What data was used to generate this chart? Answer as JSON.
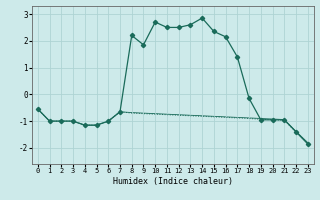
{
  "xlabel": "Humidex (Indice chaleur)",
  "background_color": "#cdeaea",
  "grid_color": "#aed4d4",
  "line_color": "#1a6b5a",
  "xlim": [
    -0.5,
    23.5
  ],
  "ylim": [
    -2.6,
    3.3
  ],
  "xticks": [
    0,
    1,
    2,
    3,
    4,
    5,
    6,
    7,
    8,
    9,
    10,
    11,
    12,
    13,
    14,
    15,
    16,
    17,
    18,
    19,
    20,
    21,
    22,
    23
  ],
  "yticks": [
    -2,
    -1,
    0,
    1,
    2,
    3
  ],
  "line1_x": [
    0,
    1,
    2,
    3,
    4,
    5,
    6,
    7,
    8,
    9,
    10,
    11,
    12,
    13,
    14,
    15,
    16,
    17,
    18,
    19,
    20,
    21,
    22,
    23
  ],
  "line1_y": [
    -0.55,
    -1.0,
    -1.0,
    -1.0,
    -1.15,
    -1.15,
    -1.0,
    -0.65,
    2.2,
    1.85,
    2.7,
    2.5,
    2.5,
    2.6,
    2.85,
    2.35,
    2.15,
    1.4,
    -0.15,
    -0.95,
    -0.95,
    -0.95,
    -1.4,
    -1.85
  ],
  "line2_x": [
    0,
    1,
    2,
    3,
    4,
    5,
    6,
    7,
    8,
    9,
    10,
    11,
    12,
    13,
    14,
    15,
    16,
    17,
    18,
    19,
    20,
    21,
    22,
    23
  ],
  "line2_y": [
    -0.55,
    -1.0,
    -1.0,
    -1.0,
    -1.15,
    -1.15,
    -1.0,
    -0.65,
    -0.7,
    -0.72,
    -0.74,
    -0.76,
    -0.78,
    -0.8,
    -0.82,
    -0.84,
    -0.86,
    -0.88,
    -0.9,
    -0.93,
    -0.95,
    -0.97,
    -1.4,
    -1.82
  ],
  "line3_x": [
    0,
    1,
    2,
    3,
    4,
    5,
    6,
    7,
    8,
    9,
    10,
    11,
    12,
    13,
    14,
    15,
    16,
    17,
    18,
    19,
    20,
    21,
    22,
    23
  ],
  "line3_y": [
    -0.55,
    -1.0,
    -1.0,
    -1.0,
    -1.15,
    -1.15,
    -1.0,
    -0.65,
    -0.68,
    -0.7,
    -0.72,
    -0.74,
    -0.76,
    -0.78,
    -0.8,
    -0.82,
    -0.84,
    -0.86,
    -0.88,
    -0.9,
    -0.92,
    -0.94,
    -1.38,
    -1.8
  ],
  "font_family": "monospace"
}
